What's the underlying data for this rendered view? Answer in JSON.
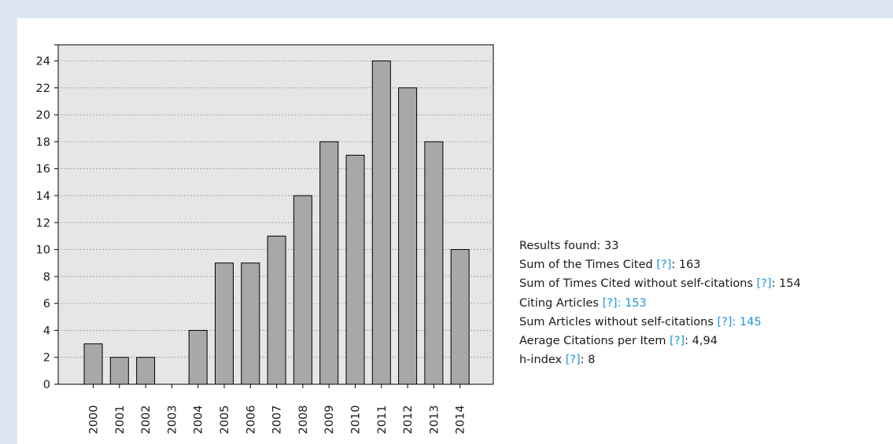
{
  "chart_data": {
    "type": "bar",
    "categories": [
      "2000",
      "2001",
      "2002",
      "2003",
      "2004",
      "2005",
      "2006",
      "2007",
      "2008",
      "2009",
      "2010",
      "2011",
      "2012",
      "2013",
      "2014"
    ],
    "values": [
      3,
      2,
      2,
      0,
      4,
      9,
      9,
      11,
      14,
      18,
      17,
      24,
      22,
      18,
      10
    ],
    "y_ticks": [
      "0",
      "2",
      "4",
      "6",
      "8",
      "10",
      "12",
      "14",
      "16",
      "18",
      "20",
      "22",
      "24"
    ],
    "ylim": [
      0,
      24
    ],
    "grid": true,
    "colors": {
      "bar": "#a8a8ab",
      "plot_bg": "#e6e6e7",
      "grid": "#9a9a9a",
      "border": "#000000"
    }
  },
  "stats": {
    "results_found": "Results found: 33",
    "times_cited_label": "Sum of the Times Cited ",
    "times_cited_help": "[?]",
    "times_cited_value": ": 163",
    "without_self_label": "Sum of Times Cited without self-citations ",
    "without_self_help": "[?]",
    "without_self_value": ": 154",
    "citing_label": "Citing Articles ",
    "citing_help": "[?]: 153",
    "articles_label": "Sum Articles without self-citations ",
    "articles_help": "[?]: 145",
    "avg_label": "Aerage Citations per Item ",
    "avg_help": "[?]",
    "avg_value": ": 4,94",
    "hindex_label": "h-index ",
    "hindex_help": "[?]",
    "hindex_value": ": 8"
  },
  "colors": {
    "page_bg": "#dfe6f3",
    "link": "#1c96d8"
  }
}
